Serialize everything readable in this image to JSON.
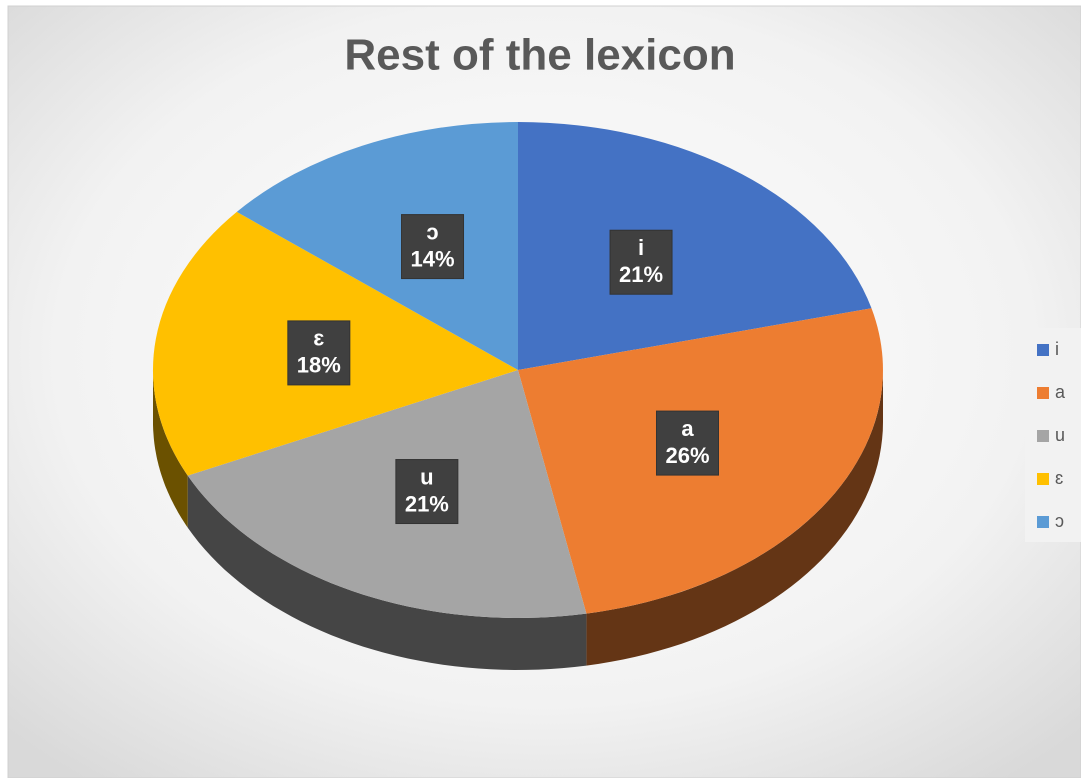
{
  "chart_data": {
    "type": "pie",
    "title": "Rest of the lexicon",
    "categories": [
      "i",
      "a",
      "u",
      "ɛ",
      "ɔ"
    ],
    "values": [
      21,
      26,
      21,
      18,
      14
    ],
    "value_labels": [
      "21%",
      "26%",
      "21%",
      "18%",
      "14%"
    ],
    "colors": [
      "#4472c4",
      "#ed7d31",
      "#a5a5a5",
      "#ffc000",
      "#5b9bd5"
    ],
    "legend": "right"
  }
}
